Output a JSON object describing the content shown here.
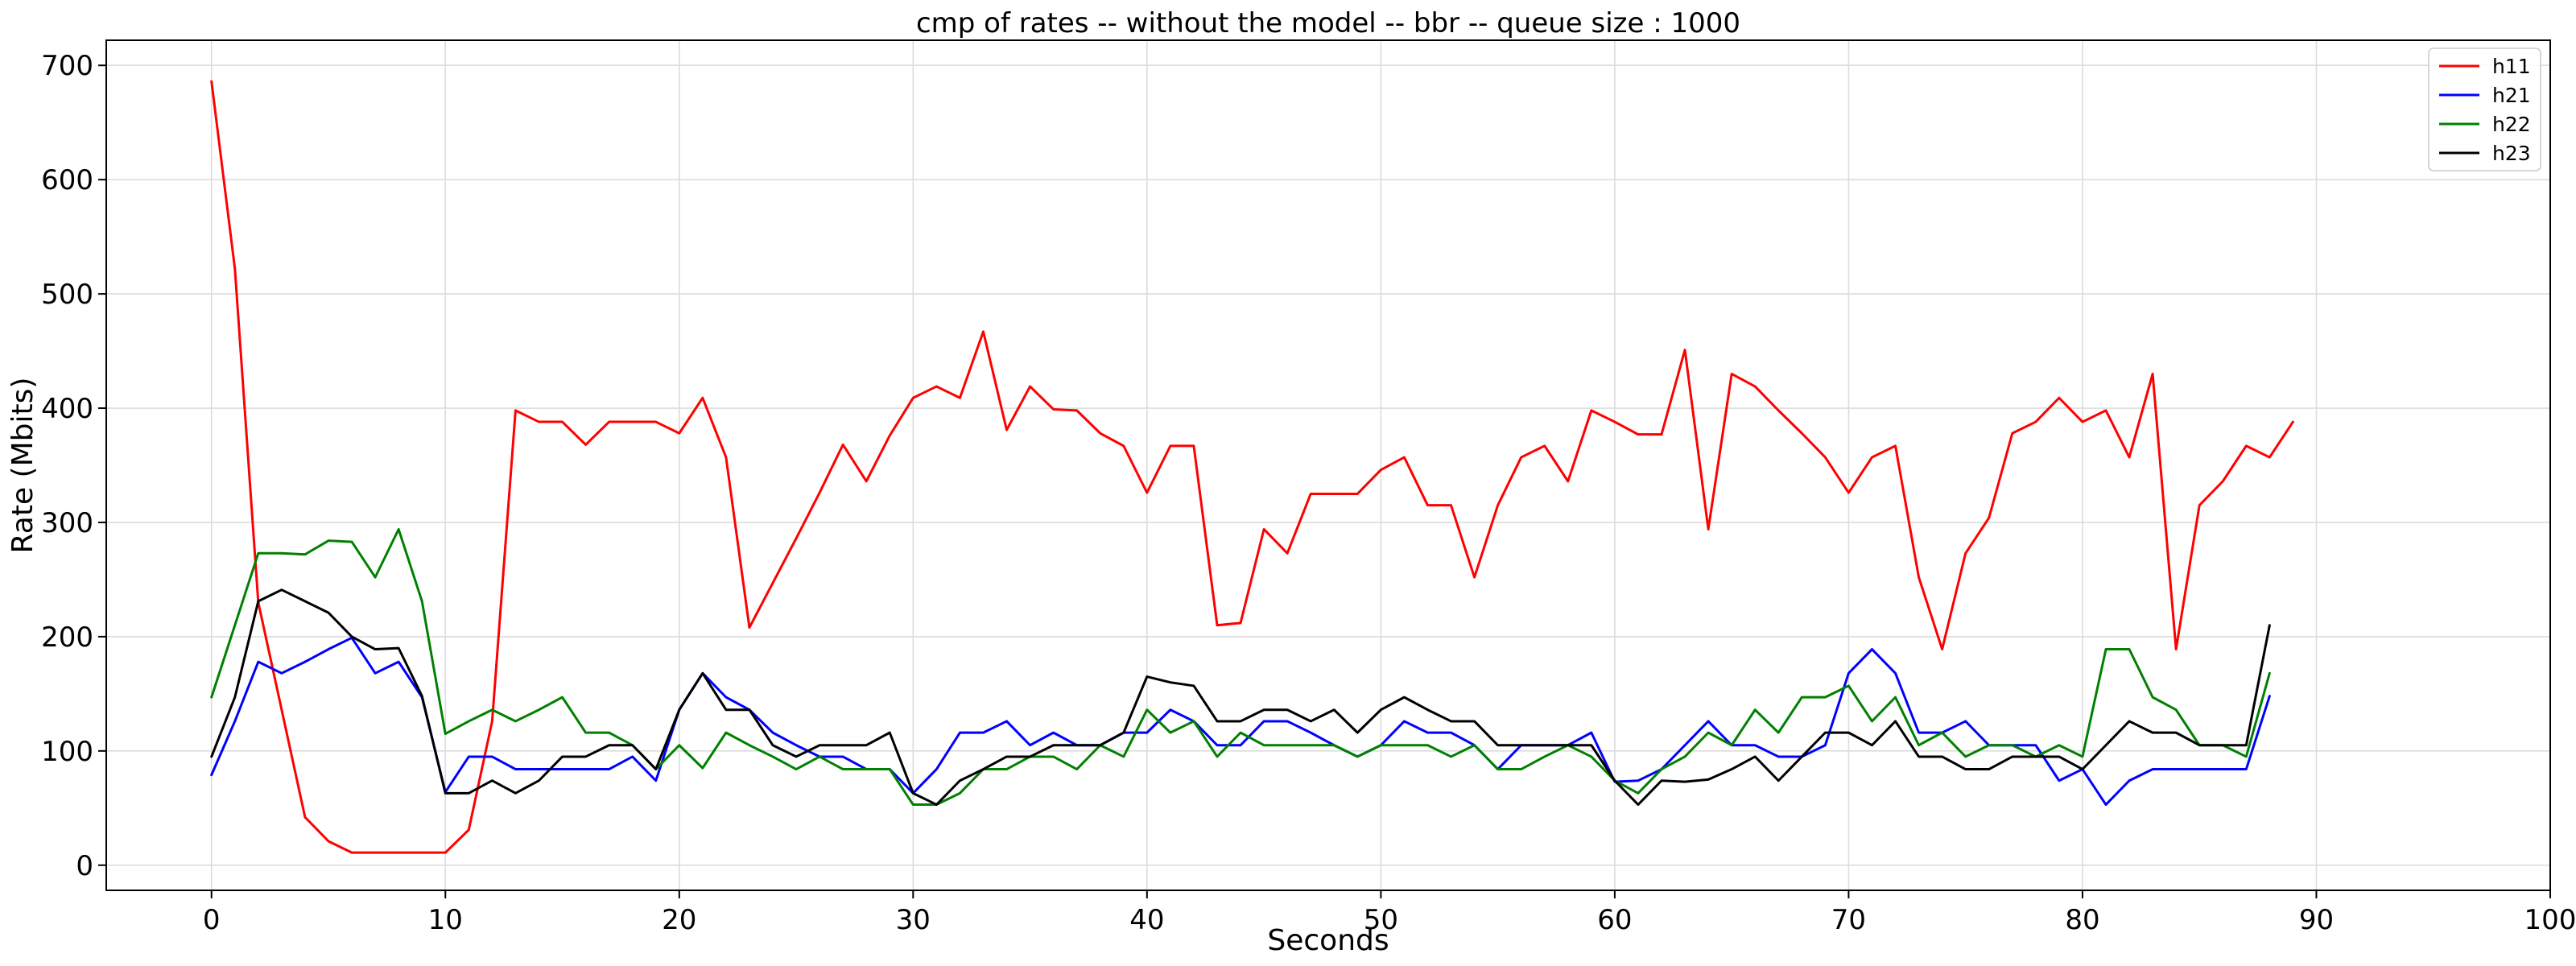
{
  "chart_data": {
    "type": "line",
    "title": "cmp of rates -- without the model -- bbr -- queue size : 1000",
    "xlabel": "Seconds",
    "ylabel": "Rate (Mbits)",
    "xlim": [
      -4.5,
      100
    ],
    "ylim": [
      -22,
      722
    ],
    "xticks": [
      0,
      10,
      20,
      30,
      40,
      50,
      60,
      70,
      80,
      90,
      100
    ],
    "yticks": [
      0,
      100,
      200,
      300,
      400,
      500,
      600,
      700
    ],
    "grid": true,
    "legend_position": "top-right",
    "series": [
      {
        "name": "h11",
        "color": "#ff0000",
        "values": [
          686,
          522,
          230,
          136,
          42,
          21,
          11,
          11,
          11,
          11,
          11,
          31,
          126,
          398,
          388,
          388,
          368,
          388,
          388,
          388,
          378,
          409,
          357,
          208,
          247,
          286,
          326,
          368,
          336,
          376,
          409,
          419,
          409,
          467,
          381,
          419,
          399,
          398,
          378,
          367,
          326,
          367,
          367,
          210,
          212,
          294,
          273,
          325,
          325,
          325,
          346,
          357,
          315,
          315,
          252,
          315,
          357,
          367,
          336,
          398,
          388,
          377,
          377,
          451,
          294,
          430,
          419,
          398,
          378,
          357,
          326,
          357,
          367,
          252,
          189,
          273,
          304,
          378,
          388,
          409,
          388,
          398,
          357,
          430,
          189,
          315,
          336,
          367,
          357,
          388
        ]
      },
      {
        "name": "h21",
        "color": "#0000ff",
        "values": [
          79,
          126,
          178,
          168,
          178,
          189,
          199,
          168,
          178,
          147,
          64,
          95,
          95,
          84,
          84,
          84,
          84,
          84,
          95,
          74,
          136,
          168,
          147,
          136,
          116,
          105,
          95,
          95,
          84,
          84,
          63,
          84,
          116,
          116,
          126,
          105,
          116,
          105,
          105,
          116,
          116,
          136,
          126,
          105,
          105,
          126,
          126,
          116,
          105,
          95,
          105,
          126,
          116,
          116,
          105,
          84,
          105,
          105,
          105,
          116,
          73,
          74,
          84,
          105,
          126,
          105,
          105,
          95,
          95,
          105,
          168,
          189,
          168,
          116,
          116,
          126,
          105,
          105,
          105,
          74,
          84,
          53,
          74,
          84,
          84,
          84,
          84,
          84,
          148
        ]
      },
      {
        "name": "h22",
        "color": "#008000",
        "values": [
          147,
          210,
          273,
          273,
          272,
          284,
          283,
          252,
          294,
          231,
          115,
          126,
          136,
          126,
          136,
          147,
          116,
          116,
          105,
          84,
          105,
          85,
          116,
          105,
          95,
          84,
          95,
          84,
          84,
          84,
          53,
          53,
          63,
          84,
          84,
          95,
          95,
          84,
          105,
          95,
          136,
          116,
          126,
          95,
          116,
          105,
          105,
          105,
          105,
          95,
          105,
          105,
          105,
          95,
          105,
          84,
          84,
          95,
          105,
          95,
          74,
          63,
          84,
          95,
          116,
          105,
          136,
          116,
          147,
          147,
          157,
          126,
          147,
          105,
          116,
          95,
          105,
          105,
          95,
          105,
          95,
          189,
          189,
          147,
          136,
          105,
          105,
          95,
          168
        ]
      },
      {
        "name": "h23",
        "color": "#000000",
        "values": [
          95,
          147,
          231,
          241,
          231,
          221,
          200,
          189,
          190,
          148,
          63,
          63,
          74,
          63,
          74,
          95,
          95,
          105,
          105,
          84,
          136,
          168,
          136,
          136,
          105,
          95,
          105,
          105,
          105,
          116,
          63,
          53,
          74,
          84,
          95,
          95,
          105,
          105,
          105,
          116,
          165,
          160,
          157,
          126,
          126,
          136,
          136,
          126,
          136,
          116,
          136,
          147,
          136,
          126,
          126,
          105,
          105,
          105,
          105,
          105,
          74,
          53,
          74,
          73,
          75,
          84,
          95,
          74,
          95,
          116,
          116,
          105,
          126,
          95,
          95,
          84,
          84,
          95,
          95,
          95,
          84,
          105,
          126,
          116,
          116,
          105,
          105,
          105,
          210
        ]
      }
    ]
  }
}
